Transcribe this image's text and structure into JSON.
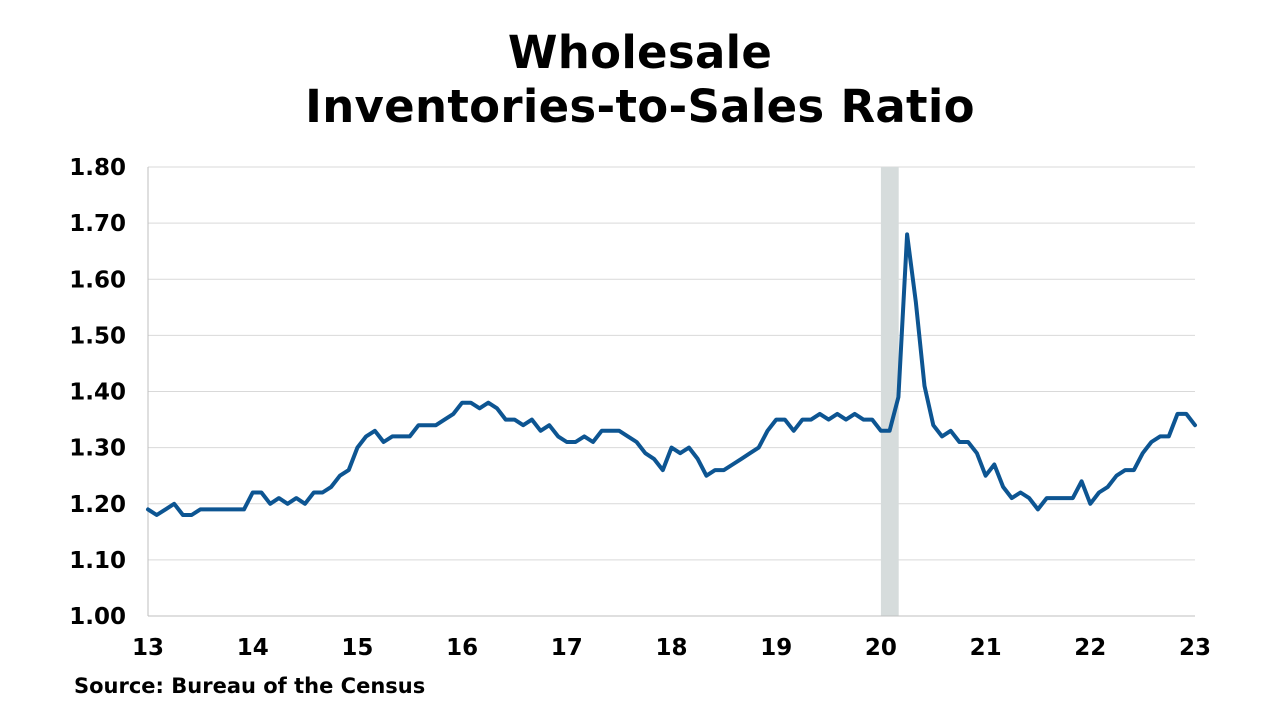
{
  "title_line1": "Wholesale",
  "title_line2": "Inventories-to-Sales Ratio",
  "source": "Source: Bureau of the Census",
  "colors": {
    "line": "#0d5592",
    "recession": "#d6dcdc",
    "grid": "#d9d9d9"
  },
  "chart_data": {
    "type": "line",
    "title": "Wholesale Inventories-to-Sales Ratio",
    "xlabel": "",
    "ylabel": "",
    "x_tick_labels": [
      "13",
      "14",
      "15",
      "16",
      "17",
      "18",
      "19",
      "20",
      "21",
      "22",
      "23"
    ],
    "y_tick_labels": [
      "1.00",
      "1.10",
      "1.20",
      "1.30",
      "1.40",
      "1.50",
      "1.60",
      "1.70",
      "1.80"
    ],
    "ylim": [
      1.0,
      1.8
    ],
    "xlim": [
      2013,
      2023
    ],
    "grid": "horizontal",
    "shaded_region": {
      "label": "recession",
      "start": 2020.0,
      "end": 2020.17
    },
    "series": [
      {
        "start": "2013-01",
        "frequency": "monthly",
        "values": [
          1.19,
          1.18,
          1.19,
          1.2,
          1.18,
          1.18,
          1.19,
          1.19,
          1.19,
          1.19,
          1.19,
          1.19,
          1.22,
          1.22,
          1.2,
          1.21,
          1.2,
          1.21,
          1.2,
          1.22,
          1.22,
          1.23,
          1.25,
          1.26,
          1.3,
          1.32,
          1.33,
          1.31,
          1.32,
          1.32,
          1.32,
          1.34,
          1.34,
          1.34,
          1.35,
          1.36,
          1.38,
          1.38,
          1.37,
          1.38,
          1.37,
          1.35,
          1.35,
          1.34,
          1.35,
          1.33,
          1.34,
          1.32,
          1.31,
          1.31,
          1.32,
          1.31,
          1.33,
          1.33,
          1.33,
          1.32,
          1.31,
          1.29,
          1.28,
          1.26,
          1.3,
          1.29,
          1.3,
          1.28,
          1.25,
          1.26,
          1.26,
          1.27,
          1.28,
          1.29,
          1.3,
          1.33,
          1.35,
          1.35,
          1.33,
          1.35,
          1.35,
          1.36,
          1.35,
          1.36,
          1.35,
          1.36,
          1.35,
          1.35,
          1.33,
          1.33,
          1.39,
          1.68,
          1.56,
          1.41,
          1.34,
          1.32,
          1.33,
          1.31,
          1.31,
          1.29,
          1.25,
          1.27,
          1.23,
          1.21,
          1.22,
          1.21,
          1.19,
          1.21,
          1.21,
          1.21,
          1.21,
          1.24,
          1.2,
          1.22,
          1.23,
          1.25,
          1.26,
          1.26,
          1.29,
          1.31,
          1.32,
          1.32,
          1.36,
          1.36,
          1.34
        ]
      }
    ]
  }
}
